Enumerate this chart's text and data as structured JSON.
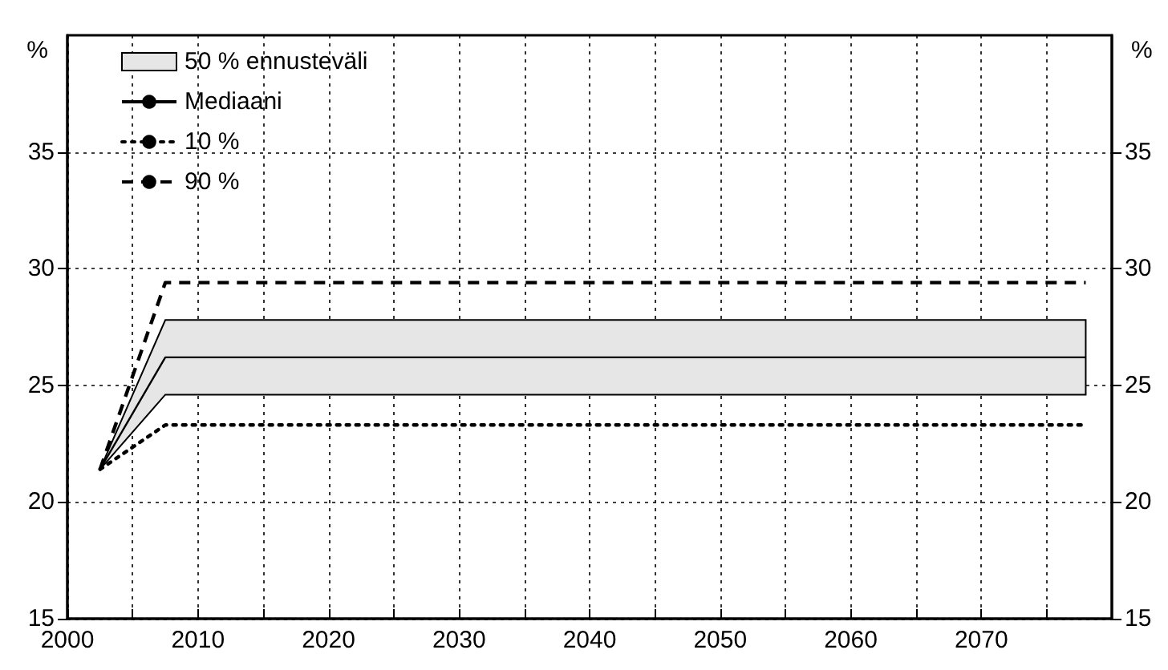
{
  "chart_data": {
    "type": "line",
    "ylabel": "%",
    "y2label": "%",
    "x": [
      2002.5,
      2007.5,
      2078
    ],
    "series": [
      {
        "name": "50 % ennusteväli",
        "type": "area",
        "color": "#e6e6e6",
        "values": [
          null,
          null,
          null
        ],
        "lower": [
          21.4,
          24.6,
          24.6
        ],
        "upper": [
          21.4,
          27.8,
          27.8
        ]
      },
      {
        "name": "Mediaani",
        "color": "#000000",
        "line_style": "solid",
        "values": [
          21.4,
          26.2,
          26.2
        ]
      },
      {
        "name": "10 %",
        "color": "#000000",
        "line_style": "dotted",
        "values": [
          21.4,
          23.3,
          23.3
        ]
      },
      {
        "name": "90 %",
        "color": "#000000",
        "line_style": "dashed",
        "values": [
          21.4,
          29.4,
          29.4
        ]
      }
    ],
    "xlim": [
      2000,
      2080
    ],
    "xticks": [
      2000,
      {
        "value": 2005,
        "label": null
      },
      2010,
      {
        "value": 2015,
        "label": null
      },
      2020,
      {
        "value": 2025,
        "label": null
      },
      2030,
      {
        "value": 2035,
        "label": null
      },
      2040,
      {
        "value": 2045,
        "label": null
      },
      2050,
      {
        "value": 2055,
        "label": null
      },
      2060,
      {
        "value": 2065,
        "label": null
      },
      2070,
      {
        "value": 2075,
        "label": null
      }
    ],
    "ylim": [
      15,
      40
    ],
    "yticks": [
      15,
      20,
      25,
      30,
      35
    ],
    "y2lim": [
      15,
      40
    ],
    "y2ticks": [
      15,
      20,
      25,
      30,
      35
    ],
    "grid": true,
    "legend": "top left",
    "marker": "none"
  }
}
